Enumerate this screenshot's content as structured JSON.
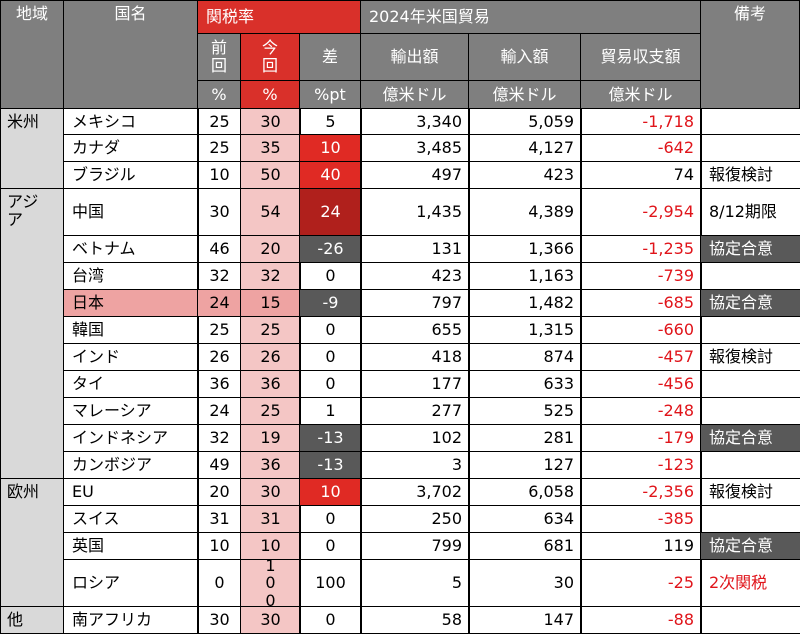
{
  "headers": {
    "region": "地域",
    "country": "国名",
    "tariff": "関税率",
    "prev": [
      "前",
      "回"
    ],
    "curr": [
      "今",
      "回"
    ],
    "diff": "差",
    "trade": "2024年米国貿易",
    "exports": "輸出額",
    "imports": "輸入額",
    "balance": "貿易収支額",
    "note": "備考",
    "unit_prev": "%",
    "unit_curr": "%",
    "unit_diff": "%pt",
    "unit_money": "億米ドル"
  },
  "regions": [
    {
      "name": "米州",
      "rows": 3
    },
    {
      "name": "アジア",
      "rows": 10
    },
    {
      "name": "欧州",
      "rows": 4
    },
    {
      "name": "他",
      "rows": 1
    }
  ],
  "rows": [
    {
      "country": "メキシコ",
      "prev": "25",
      "curr": "30",
      "diff": "5",
      "exports": "3,340",
      "imports": "5,059",
      "balance": "-1,718",
      "note": ""
    },
    {
      "country": "カナダ",
      "prev": "25",
      "curr": "35",
      "diff": "10",
      "exports": "3,485",
      "imports": "4,127",
      "balance": "-642",
      "note": ""
    },
    {
      "country": "ブラジル",
      "prev": "10",
      "curr": "50",
      "diff": "40",
      "exports": "497",
      "imports": "423",
      "balance": "74",
      "note": "報復検討"
    },
    {
      "country": "中国",
      "prev": "30",
      "curr": "54",
      "diff": "24",
      "exports": "1,435",
      "imports": "4,389",
      "balance": "-2,954",
      "note": "8/12期限"
    },
    {
      "country": "ベトナム",
      "prev": "46",
      "curr": "20",
      "diff": "-26",
      "exports": "131",
      "imports": "1,366",
      "balance": "-1,235",
      "note": "協定合意"
    },
    {
      "country": "台湾",
      "prev": "32",
      "curr": "32",
      "diff": "0",
      "exports": "423",
      "imports": "1,163",
      "balance": "-739",
      "note": ""
    },
    {
      "country": "日本",
      "prev": "24",
      "curr": "15",
      "diff": "-9",
      "exports": "797",
      "imports": "1,482",
      "balance": "-685",
      "note": "協定合意"
    },
    {
      "country": "韓国",
      "prev": "25",
      "curr": "25",
      "diff": "0",
      "exports": "655",
      "imports": "1,315",
      "balance": "-660",
      "note": ""
    },
    {
      "country": "インド",
      "prev": "26",
      "curr": "26",
      "diff": "0",
      "exports": "418",
      "imports": "874",
      "balance": "-457",
      "note": "報復検討"
    },
    {
      "country": "タイ",
      "prev": "36",
      "curr": "36",
      "diff": "0",
      "exports": "177",
      "imports": "633",
      "balance": "-456",
      "note": ""
    },
    {
      "country": "マレーシア",
      "prev": "24",
      "curr": "25",
      "diff": "1",
      "exports": "277",
      "imports": "525",
      "balance": "-248",
      "note": ""
    },
    {
      "country": "インドネシア",
      "prev": "32",
      "curr": "19",
      "diff": "-13",
      "exports": "102",
      "imports": "281",
      "balance": "-179",
      "note": "協定合意"
    },
    {
      "country": "カンボジア",
      "prev": "49",
      "curr": "36",
      "diff": "-13",
      "exports": "3",
      "imports": "127",
      "balance": "-123",
      "note": ""
    },
    {
      "country": "EU",
      "prev": "20",
      "curr": "30",
      "diff": "10",
      "exports": "3,702",
      "imports": "6,058",
      "balance": "-2,356",
      "note": "報復検討"
    },
    {
      "country": "スイス",
      "prev": "31",
      "curr": "31",
      "diff": "0",
      "exports": "250",
      "imports": "634",
      "balance": "-385",
      "note": ""
    },
    {
      "country": "英国",
      "prev": "10",
      "curr": "10",
      "diff": "0",
      "exports": "799",
      "imports": "681",
      "balance": "119",
      "note": "協定合意"
    },
    {
      "country": "ロシア",
      "prev": "0",
      "curr": "100",
      "diff": "100",
      "exports": "5",
      "imports": "30",
      "balance": "-25",
      "note": "2次関税"
    },
    {
      "country": "南アフリカ",
      "prev": "30",
      "curr": "30",
      "diff": "0",
      "exports": "58",
      "imports": "147",
      "balance": "-88",
      "note": ""
    }
  ],
  "colors": {
    "header_gray": "#7f7f7f",
    "header_red": "#d9302a",
    "region_gray": "#d9d9d9",
    "pink": "#f4c6c5",
    "red": "#e02a24",
    "dark_red": "#b0201c",
    "dark_gray": "#595959",
    "negative_text": "#e0141a"
  }
}
